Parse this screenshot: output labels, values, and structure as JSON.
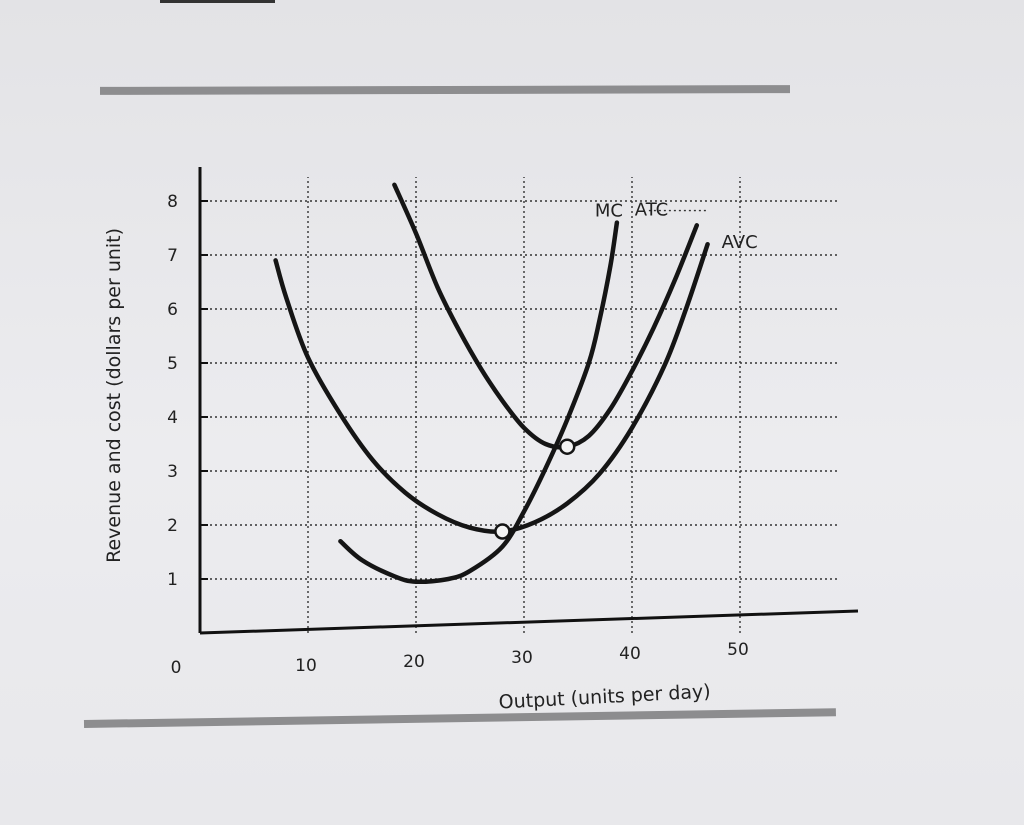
{
  "chart_data": {
    "type": "line",
    "xlabel": "Output (units per day)",
    "ylabel": "Revenue and cost (dollars per unit)",
    "origin_label": "0",
    "x_ticks": [
      10,
      20,
      30,
      40,
      50
    ],
    "y_ticks": [
      1,
      2,
      3,
      4,
      5,
      6,
      7,
      8
    ],
    "xlim": [
      0,
      60
    ],
    "ylim": [
      0,
      9
    ],
    "grid": true,
    "series": [
      {
        "name": "MC",
        "points": [
          [
            13,
            1.7
          ],
          [
            15,
            1.35
          ],
          [
            18,
            1.05
          ],
          [
            20,
            0.95
          ],
          [
            23,
            1.0
          ],
          [
            25,
            1.15
          ],
          [
            28,
            1.6
          ],
          [
            30,
            2.25
          ],
          [
            32,
            3.05
          ],
          [
            34,
            3.95
          ],
          [
            36,
            5.0
          ],
          [
            37,
            5.8
          ],
          [
            38,
            6.8
          ],
          [
            38.6,
            7.6
          ]
        ]
      },
      {
        "name": "ATC",
        "points": [
          [
            18,
            8.3
          ],
          [
            20,
            7.4
          ],
          [
            22,
            6.4
          ],
          [
            24,
            5.6
          ],
          [
            26,
            4.9
          ],
          [
            28,
            4.3
          ],
          [
            30,
            3.8
          ],
          [
            32,
            3.5
          ],
          [
            34,
            3.45
          ],
          [
            36,
            3.65
          ],
          [
            38,
            4.15
          ],
          [
            40,
            4.85
          ],
          [
            42,
            5.65
          ],
          [
            44,
            6.55
          ],
          [
            46,
            7.55
          ]
        ]
      },
      {
        "name": "AVC",
        "points": [
          [
            7,
            6.9
          ],
          [
            8,
            6.2
          ],
          [
            10,
            5.1
          ],
          [
            13,
            4.05
          ],
          [
            16,
            3.2
          ],
          [
            19,
            2.6
          ],
          [
            22,
            2.2
          ],
          [
            25,
            1.95
          ],
          [
            28,
            1.88
          ],
          [
            31,
            2.05
          ],
          [
            34,
            2.4
          ],
          [
            37,
            2.95
          ],
          [
            40,
            3.8
          ],
          [
            43,
            4.95
          ],
          [
            45,
            6.0
          ],
          [
            47,
            7.2
          ]
        ]
      }
    ],
    "highlighted_points": [
      {
        "x": 28,
        "y": 1.88
      },
      {
        "x": 34,
        "y": 3.45
      }
    ]
  }
}
